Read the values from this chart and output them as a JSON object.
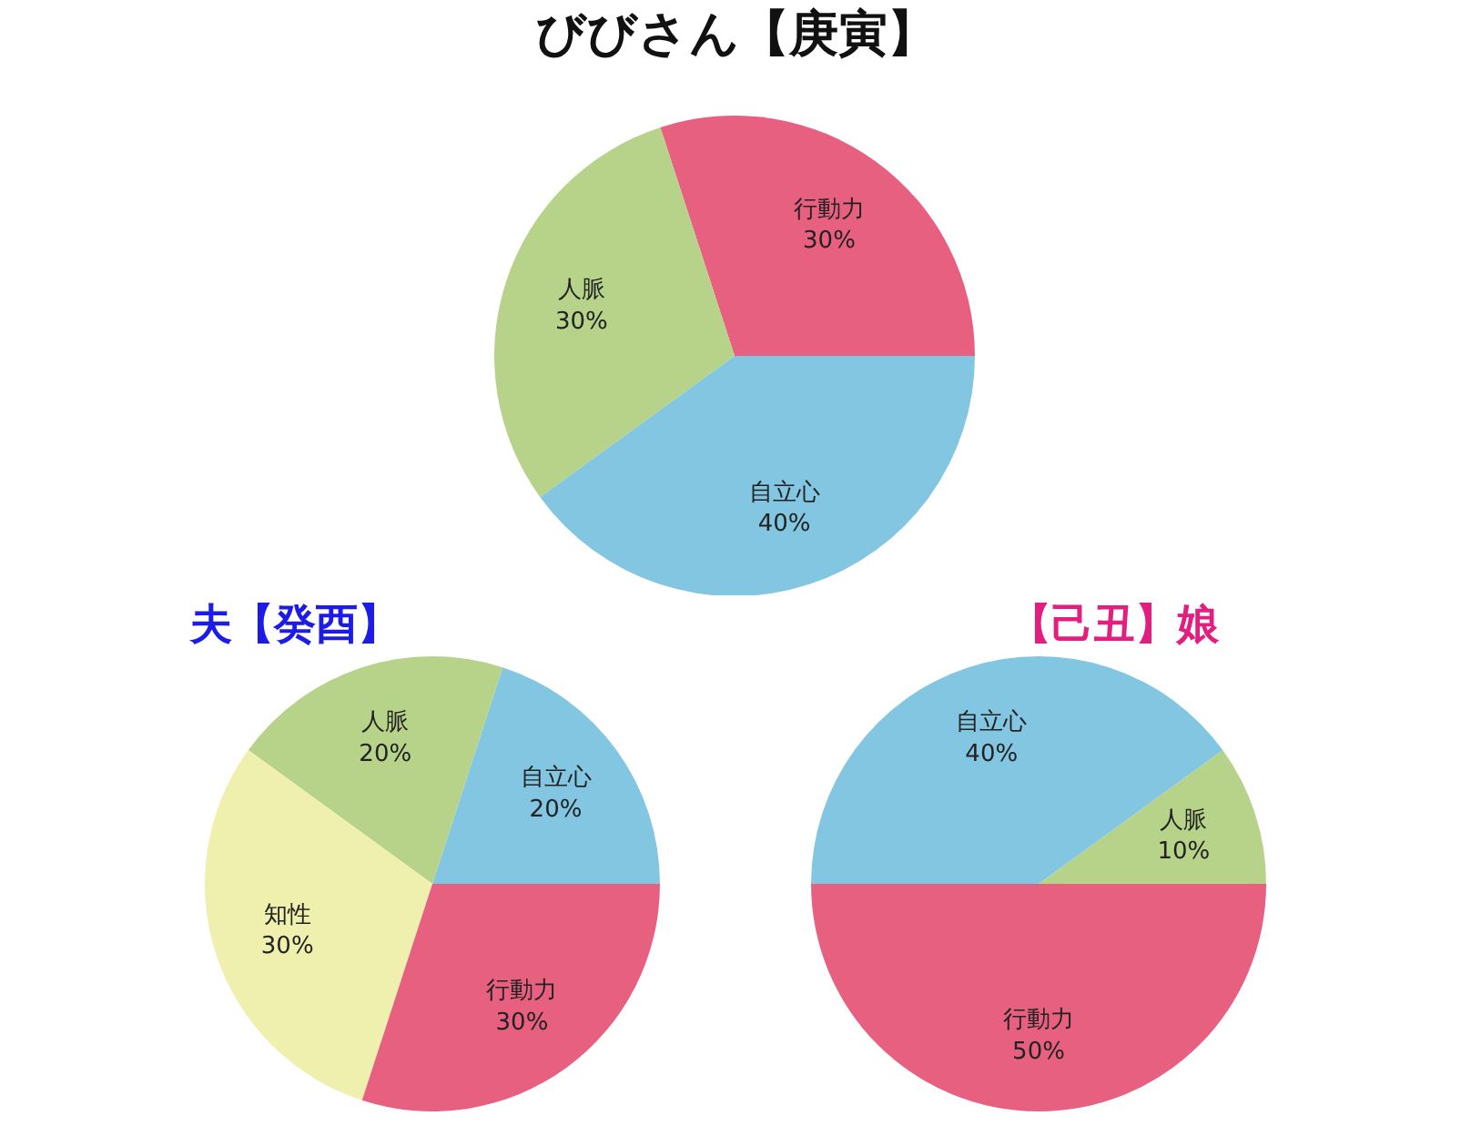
{
  "chart_data": [
    {
      "type": "pie",
      "title": "びびさん【庚寅】",
      "categories": [
        "行動力",
        "人脈",
        "自立心"
      ],
      "values": [
        30,
        30,
        40
      ],
      "colors": [
        "#e86080",
        "#b7d38a",
        "#82c6e2"
      ],
      "value_labels": [
        "30%",
        "30%",
        "40%"
      ]
    },
    {
      "type": "pie",
      "title": "夫【癸酉】",
      "categories": [
        "自立心",
        "人脈",
        "知性",
        "行動力"
      ],
      "values": [
        20,
        20,
        30,
        30
      ],
      "colors": [
        "#82c6e2",
        "#b7d38a",
        "#eff0ae",
        "#e86080"
      ],
      "value_labels": [
        "20%",
        "20%",
        "30%",
        "30%"
      ]
    },
    {
      "type": "pie",
      "title": "【己丑】娘",
      "categories": [
        "人脈",
        "自立心",
        "行動力"
      ],
      "values": [
        10,
        40,
        50
      ],
      "colors": [
        "#b7d38a",
        "#82c6e2",
        "#e86080"
      ],
      "value_labels": [
        "10%",
        "40%",
        "50%"
      ]
    }
  ]
}
